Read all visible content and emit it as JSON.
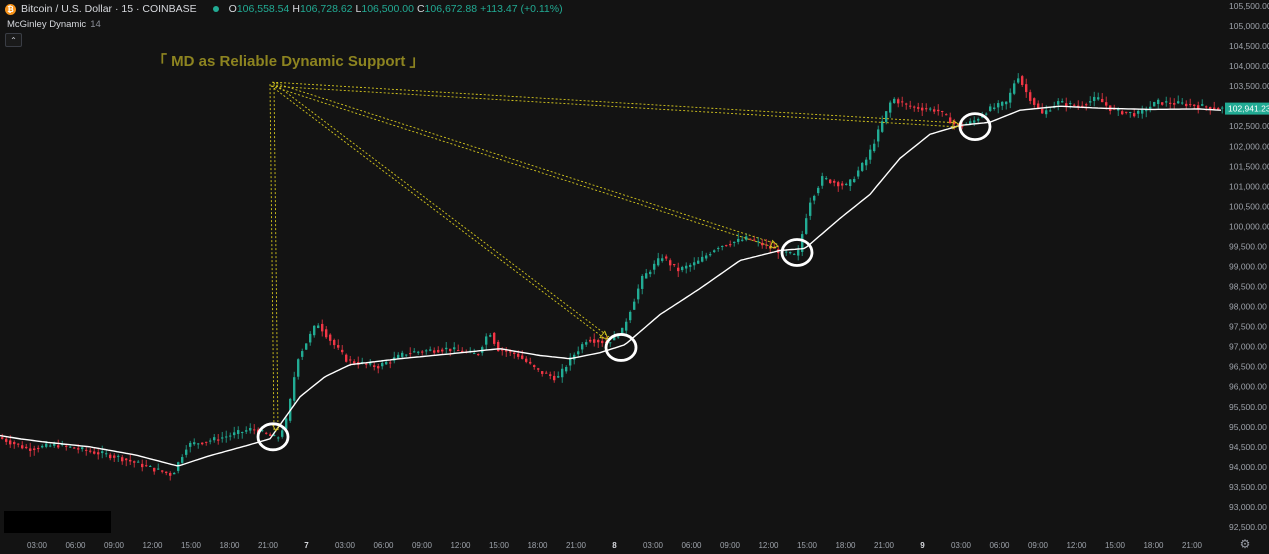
{
  "header": {
    "icon_glyph": "₿",
    "symbol": "Bitcoin / U.S. Dollar · 15 · COINBASE",
    "ohlc": [
      {
        "k": "O",
        "v": "106,558.54"
      },
      {
        "k": "H",
        "v": "106,728.62"
      },
      {
        "k": "L",
        "v": "106,500.00"
      },
      {
        "k": "C",
        "v": "106,672.88"
      }
    ],
    "change": "+113.47 (+0.11%)"
  },
  "indicator": {
    "name": "McGinley Dynamic",
    "param": "14"
  },
  "collapse_glyph": "⌃",
  "settings_glyph": "⚙",
  "colors": {
    "up": "#22ab94",
    "down": "#f23645",
    "md_line": "#ffffff",
    "arrow": "#d6c81f",
    "title": "#8d8420",
    "price_tag": "#22ab94"
  },
  "chart_data": {
    "type": "candlestick",
    "title": "「 MD as Reliable Dynamic Support 」",
    "y_axis": {
      "range": [
        92500,
        105500
      ],
      "tick_labels": [
        "92,500.00",
        "93,000.00",
        "93,500.00",
        "94,000.00",
        "94,500.00",
        "95,000.00",
        "95,500.00",
        "96,000.00",
        "96,500.00",
        "97,000.00",
        "97,500.00",
        "98,000.00",
        "98,500.00",
        "99,000.00",
        "99,500.00",
        "100,000.00",
        "100,500.00",
        "101,000.00",
        "101,500.00",
        "102,000.00",
        "102,500.00",
        "103,000.00",
        "103,500.00",
        "104,000.00",
        "104,500.00",
        "105,000.00",
        "105,500.00"
      ]
    },
    "x_axis": {
      "tick_labels": [
        "03:00",
        "06:00",
        "09:00",
        "12:00",
        "15:00",
        "18:00",
        "21:00",
        "7",
        "03:00",
        "06:00",
        "09:00",
        "12:00",
        "15:00",
        "18:00",
        "21:00",
        "8",
        "03:00",
        "06:00",
        "09:00",
        "12:00",
        "15:00",
        "18:00",
        "21:00",
        "9",
        "03:00",
        "06:00",
        "09:00",
        "12:00",
        "15:00",
        "18:00",
        "21:00"
      ],
      "day_labels": [
        "7",
        "8",
        "9"
      ]
    },
    "last_price_label": "102,941.23",
    "grid": false,
    "series": [
      {
        "name": "McGinley Dynamic",
        "type": "line",
        "anchors": [
          [
            0,
            94780
          ],
          [
            20,
            94700
          ],
          [
            45,
            94620
          ],
          [
            90,
            94500
          ],
          [
            135,
            94300
          ],
          [
            178,
            94020
          ],
          [
            210,
            94280
          ],
          [
            245,
            94520
          ],
          [
            270,
            94700
          ],
          [
            300,
            95750
          ],
          [
            325,
            96250
          ],
          [
            350,
            96550
          ],
          [
            400,
            96700
          ],
          [
            450,
            96820
          ],
          [
            500,
            96950
          ],
          [
            540,
            96780
          ],
          [
            570,
            96700
          ],
          [
            600,
            96850
          ],
          [
            625,
            97050
          ],
          [
            660,
            97800
          ],
          [
            700,
            98450
          ],
          [
            740,
            99150
          ],
          [
            780,
            99400
          ],
          [
            805,
            99450
          ],
          [
            840,
            100200
          ],
          [
            870,
            100800
          ],
          [
            900,
            101700
          ],
          [
            930,
            102300
          ],
          [
            960,
            102520
          ],
          [
            990,
            102600
          ],
          [
            1020,
            102900
          ],
          [
            1060,
            103000
          ],
          [
            1100,
            102950
          ],
          [
            1150,
            102920
          ],
          [
            1200,
            102930
          ],
          [
            1220,
            102900
          ]
        ]
      },
      {
        "name": "BTCUSD",
        "type": "candles",
        "anchors": [
          [
            0,
            94750
          ],
          [
            30,
            94450
          ],
          [
            60,
            94550
          ],
          [
            90,
            94400
          ],
          [
            120,
            94250
          ],
          [
            150,
            94000
          ],
          [
            175,
            93800
          ],
          [
            190,
            94550
          ],
          [
            220,
            94700
          ],
          [
            255,
            94950
          ],
          [
            280,
            94700
          ],
          [
            290,
            95200
          ],
          [
            300,
            96700
          ],
          [
            320,
            97600
          ],
          [
            335,
            97100
          ],
          [
            350,
            96650
          ],
          [
            380,
            96500
          ],
          [
            410,
            96850
          ],
          [
            450,
            96950
          ],
          [
            480,
            96800
          ],
          [
            492,
            97400
          ],
          [
            500,
            96950
          ],
          [
            520,
            96800
          ],
          [
            540,
            96400
          ],
          [
            560,
            96200
          ],
          [
            575,
            96750
          ],
          [
            590,
            97200
          ],
          [
            610,
            97100
          ],
          [
            625,
            97400
          ],
          [
            645,
            98700
          ],
          [
            665,
            99250
          ],
          [
            680,
            98900
          ],
          [
            700,
            99100
          ],
          [
            720,
            99500
          ],
          [
            750,
            99700
          ],
          [
            780,
            99400
          ],
          [
            800,
            99250
          ],
          [
            812,
            100600
          ],
          [
            825,
            101200
          ],
          [
            850,
            101000
          ],
          [
            870,
            101700
          ],
          [
            885,
            102600
          ],
          [
            895,
            103200
          ],
          [
            910,
            103000
          ],
          [
            940,
            102900
          ],
          [
            960,
            102500
          ],
          [
            975,
            102600
          ],
          [
            990,
            102900
          ],
          [
            1010,
            103100
          ],
          [
            1020,
            103800
          ],
          [
            1030,
            103300
          ],
          [
            1045,
            102800
          ],
          [
            1060,
            103100
          ],
          [
            1080,
            103000
          ],
          [
            1100,
            103200
          ],
          [
            1115,
            102900
          ],
          [
            1140,
            102800
          ],
          [
            1160,
            103100
          ],
          [
            1190,
            103050
          ],
          [
            1220,
            102940
          ]
        ]
      }
    ],
    "annotations": [
      {
        "type": "arrow",
        "from": [
          272,
          103550
        ],
        "to": [
          276,
          94900
        ],
        "label": ""
      },
      {
        "type": "arrow",
        "from": [
          272,
          103550
        ],
        "to": [
          608,
          97200
        ],
        "label": ""
      },
      {
        "type": "arrow",
        "from": [
          272,
          103550
        ],
        "to": [
          778,
          99500
        ],
        "label": ""
      },
      {
        "type": "arrow",
        "from": [
          272,
          103550
        ],
        "to": [
          960,
          102530
        ],
        "label": ""
      },
      {
        "type": "circle",
        "at": [
          273,
          94750
        ],
        "label": ""
      },
      {
        "type": "circle",
        "at": [
          621,
          96980
        ],
        "label": ""
      },
      {
        "type": "circle",
        "at": [
          797,
          99350
        ],
        "label": ""
      },
      {
        "type": "circle",
        "at": [
          975,
          102490
        ],
        "label": ""
      }
    ]
  }
}
